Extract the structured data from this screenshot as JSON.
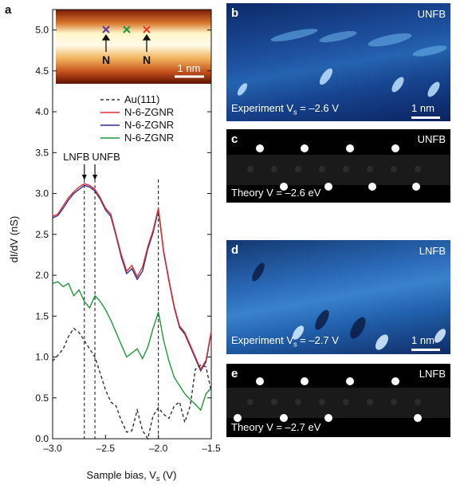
{
  "panel_a": {
    "letter": "a",
    "inset": {
      "markers": [
        {
          "color": "#5b3aa0"
        },
        {
          "color": "#1a9a3a"
        },
        {
          "color": "#e23a2a"
        }
      ],
      "n_label": "N",
      "scalebar_label": "1 nm"
    },
    "annotations": [
      {
        "label": "LNFB",
        "x": -2.7
      },
      {
        "label": "UNFB",
        "x": -2.6
      }
    ]
  },
  "chart_data": {
    "type": "line",
    "xlabel": "Sample bias, V",
    "xlabel_sub": "s",
    "xlabel_unit": " (V)",
    "ylabel": "dI/dV (nS)",
    "xlim": [
      -3.0,
      -1.5
    ],
    "ylim": [
      0.0,
      5.25
    ],
    "x_ticks": [
      "-3.0",
      "-2.5",
      "-2.0",
      "-1.5"
    ],
    "y_ticks": [
      "0.0",
      "0.5",
      "1.0",
      "1.5",
      "2.0",
      "2.5",
      "3.0",
      "3.5",
      "4.0",
      "4.5",
      "5.0"
    ],
    "reference_lines_x": [
      -2.7,
      -2.6,
      -2.0
    ],
    "series": [
      {
        "name": "Au(111)",
        "color": "#333333",
        "dash": true,
        "x": [
          -3.0,
          -2.95,
          -2.9,
          -2.85,
          -2.8,
          -2.75,
          -2.7,
          -2.65,
          -2.6,
          -2.55,
          -2.5,
          -2.45,
          -2.4,
          -2.35,
          -2.3,
          -2.25,
          -2.2,
          -2.15,
          -2.1,
          -2.05,
          -2.0,
          -1.95,
          -1.9,
          -1.85,
          -1.8,
          -1.75,
          -1.7,
          -1.65,
          -1.6,
          -1.55,
          -1.5
        ],
        "y": [
          0.95,
          1.02,
          1.1,
          1.25,
          1.35,
          1.3,
          1.2,
          1.1,
          1.0,
          0.8,
          0.6,
          0.45,
          0.4,
          0.22,
          0.08,
          0.1,
          0.35,
          0.1,
          0.0,
          0.28,
          0.38,
          0.3,
          0.25,
          0.4,
          0.45,
          0.2,
          0.4,
          0.85,
          0.9,
          0.88,
          0.58
        ]
      },
      {
        "name": "N-6-ZGNR",
        "color": "#e23030",
        "dash": false,
        "x": [
          -3.0,
          -2.95,
          -2.9,
          -2.85,
          -2.8,
          -2.75,
          -2.7,
          -2.65,
          -2.6,
          -2.55,
          -2.5,
          -2.45,
          -2.4,
          -2.35,
          -2.3,
          -2.25,
          -2.2,
          -2.15,
          -2.1,
          -2.05,
          -2.0,
          -1.95,
          -1.9,
          -1.85,
          -1.8,
          -1.75,
          -1.7,
          -1.65,
          -1.6,
          -1.55,
          -1.5
        ],
        "y": [
          2.72,
          2.75,
          2.85,
          2.95,
          3.02,
          3.08,
          3.12,
          3.1,
          3.05,
          2.95,
          2.82,
          2.75,
          2.5,
          2.25,
          2.05,
          2.12,
          1.98,
          2.1,
          2.35,
          2.55,
          2.82,
          2.3,
          1.95,
          1.62,
          1.38,
          1.3,
          1.15,
          1.0,
          0.85,
          0.96,
          1.32
        ]
      },
      {
        "name": "N-6-ZGNR",
        "color": "#2a2f8f",
        "dash": false,
        "x": [
          -3.0,
          -2.95,
          -2.9,
          -2.85,
          -2.8,
          -2.75,
          -2.7,
          -2.65,
          -2.6,
          -2.55,
          -2.5,
          -2.45,
          -2.4,
          -2.35,
          -2.3,
          -2.25,
          -2.2,
          -2.15,
          -2.1,
          -2.05,
          -2.0,
          -1.95,
          -1.9,
          -1.85,
          -1.8,
          -1.75,
          -1.7,
          -1.65,
          -1.6,
          -1.55,
          -1.5
        ],
        "y": [
          2.7,
          2.73,
          2.82,
          2.92,
          3.0,
          3.05,
          3.1,
          3.08,
          3.03,
          2.93,
          2.8,
          2.72,
          2.48,
          2.22,
          2.02,
          2.08,
          1.95,
          2.05,
          2.32,
          2.52,
          2.8,
          2.28,
          1.93,
          1.6,
          1.36,
          1.28,
          1.13,
          0.98,
          0.83,
          0.94,
          1.3
        ]
      },
      {
        "name": "N-6-ZGNR",
        "color": "#1f9a3a",
        "dash": false,
        "x": [
          -3.0,
          -2.95,
          -2.9,
          -2.85,
          -2.8,
          -2.75,
          -2.7,
          -2.65,
          -2.6,
          -2.55,
          -2.5,
          -2.45,
          -2.4,
          -2.35,
          -2.3,
          -2.25,
          -2.2,
          -2.15,
          -2.1,
          -2.05,
          -2.0,
          -1.95,
          -1.9,
          -1.85,
          -1.8,
          -1.75,
          -1.7,
          -1.65,
          -1.6,
          -1.55,
          -1.5
        ],
        "y": [
          1.9,
          1.92,
          1.86,
          1.9,
          1.75,
          1.82,
          1.68,
          1.6,
          1.75,
          1.68,
          1.58,
          1.45,
          1.3,
          1.15,
          1.0,
          1.05,
          1.1,
          0.98,
          1.12,
          1.35,
          1.55,
          1.2,
          0.95,
          0.75,
          0.65,
          0.55,
          0.48,
          0.42,
          0.35,
          0.55,
          0.62
        ]
      }
    ]
  },
  "panel_b": {
    "letter": "b",
    "tag": "UNFB",
    "caption_main": "Experiment V",
    "caption_sub": "s",
    "caption_value": " = –2.6 V",
    "scalebar_label": "1 nm"
  },
  "panel_c": {
    "letter": "c",
    "tag": "UNFB",
    "caption_main": "Theory V = –2.6 eV"
  },
  "panel_d": {
    "letter": "d",
    "tag": "LNFB",
    "caption_main": "Experiment V",
    "caption_sub": "s",
    "caption_value": " = –2.7 V",
    "scalebar_label": "1 nm"
  },
  "panel_e": {
    "letter": "e",
    "tag": "LNFB",
    "caption_main": "Theory V = –2.7 eV"
  }
}
